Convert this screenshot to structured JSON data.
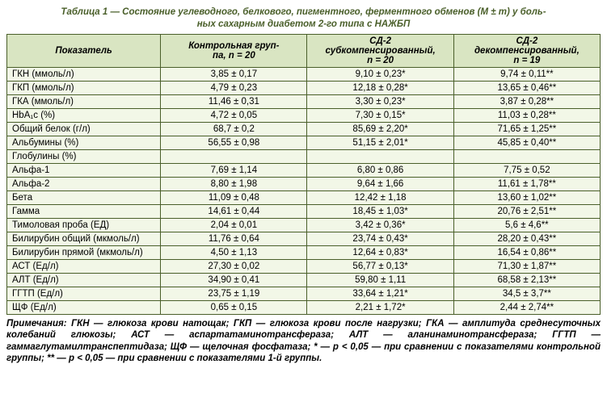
{
  "title_line1": "Таблица 1 — Состояние углеводного, белкового, пигментного, ферментного обменов (M ± m) у боль-",
  "title_line2": "ных сахарным диабетом 2-го типа с НАЖБП",
  "headers": {
    "indicator": "Показатель",
    "control_l1": "Контрольная груп-",
    "control_l2": "па, n = 20",
    "sd2sub_l1": "СД-2",
    "sd2sub_l2": "субкомпенсированный,",
    "sd2sub_l3": "n = 20",
    "sd2dec_l1": "СД-2",
    "sd2dec_l2": "декомпенсированный,",
    "sd2dec_l3": "n = 19"
  },
  "rows": [
    {
      "label": "ГКН (ммоль/л)",
      "c": "3,85 ± 0,17",
      "s": "9,10 ± 0,23*",
      "d": "9,74 ± 0,11**"
    },
    {
      "label": "ГКП (ммоль/л)",
      "c": "4,79 ± 0,23",
      "s": "12,18 ± 0,28*",
      "d": "13,65 ± 0,46**"
    },
    {
      "label": "ГКА (ммоль/л)",
      "c": "11,46 ± 0,31",
      "s": "3,30 ± 0,23*",
      "d": "3,87 ± 0,28**"
    },
    {
      "label": "HbA₁c (%)",
      "c": "4,72 ± 0,05",
      "s": "7,30 ± 0,15*",
      "d": "11,03 ± 0,28**"
    },
    {
      "label": "Общий белок (г/л)",
      "c": "68,7 ± 0,2",
      "s": "85,69 ± 2,20*",
      "d": "71,65 ± 1,25**"
    },
    {
      "label": "Альбумины (%)",
      "c": "56,55 ± 0,98",
      "s": "51,15 ± 2,01*",
      "d": "45,85 ± 0,40**"
    },
    {
      "label": "Глобулины (%)",
      "c": "",
      "s": "",
      "d": ""
    },
    {
      "label": "Альфа-1",
      "c": "7,69 ± 1,14",
      "s": "6,80 ± 0,86",
      "d": "7,75 ± 0,52"
    },
    {
      "label": "Альфа-2",
      "c": "8,80 ± 1,98",
      "s": "9,64 ± 1,66",
      "d": "11,61 ± 1,78**"
    },
    {
      "label": "Бета",
      "c": "11,09 ± 0,48",
      "s": "12,42 ± 1,18",
      "d": "13,60 ± 1,02**"
    },
    {
      "label": "Гамма",
      "c": "14,61 ± 0,44",
      "s": "18,45 ± 1,03*",
      "d": "20,76 ± 2,51**"
    },
    {
      "label": "Тимоловая проба (ЕД)",
      "c": "2,04 ± 0,01",
      "s": "3,42 ± 0,36*",
      "d": "5,6 ± 4,6**"
    },
    {
      "label": "Билирубин общий (мкмоль/л)",
      "c": "11,76 ± 0,64",
      "s": "23,74 ± 0,43*",
      "d": "28,20 ± 0,43**"
    },
    {
      "label": "Билирубин прямой (мкмоль/л)",
      "c": "4,50 ± 1,13",
      "s": "12,64 ± 0,83*",
      "d": "16,54 ± 0,86**"
    },
    {
      "label": "АСТ (Ед/л)",
      "c": "27,30 ± 0,02",
      "s": "56,77 ± 0,13*",
      "d": "71,30 ± 1,87**"
    },
    {
      "label": "АЛТ (Ед/л)",
      "c": "34,90 ± 0,41",
      "s": "59,80 ± 1,11",
      "d": "68,58 ± 2,13**"
    },
    {
      "label": "ГГТП (Ед/л)",
      "c": "23,75 ± 1,19",
      "s": "33,64 ± 1,21*",
      "d": "34,5 ± 3,7**"
    },
    {
      "label": "ЩФ (Ед/л)",
      "c": "0,65 ± 0,15",
      "s": "2,21 ± 1,72*",
      "d": "2,44 ± 2,74**"
    }
  ],
  "notes": "Примечания: ГКН — глюкоза крови натощак; ГКП — глюкоза крови после нагрузки; ГКА — амплитуда среднесуточных колебаний глюкозы; АСТ — аспартатаминотрансфераза; АЛТ — аланинаминотрансфераза; ГГТП — гаммаглутамилтранспептидаза; ЩФ — щелочная фосфатаза; * — p < 0,05 — при сравнении с показателями контрольной группы; ** — p < 0,05 — при сравнении с показателями 1-й группы."
}
